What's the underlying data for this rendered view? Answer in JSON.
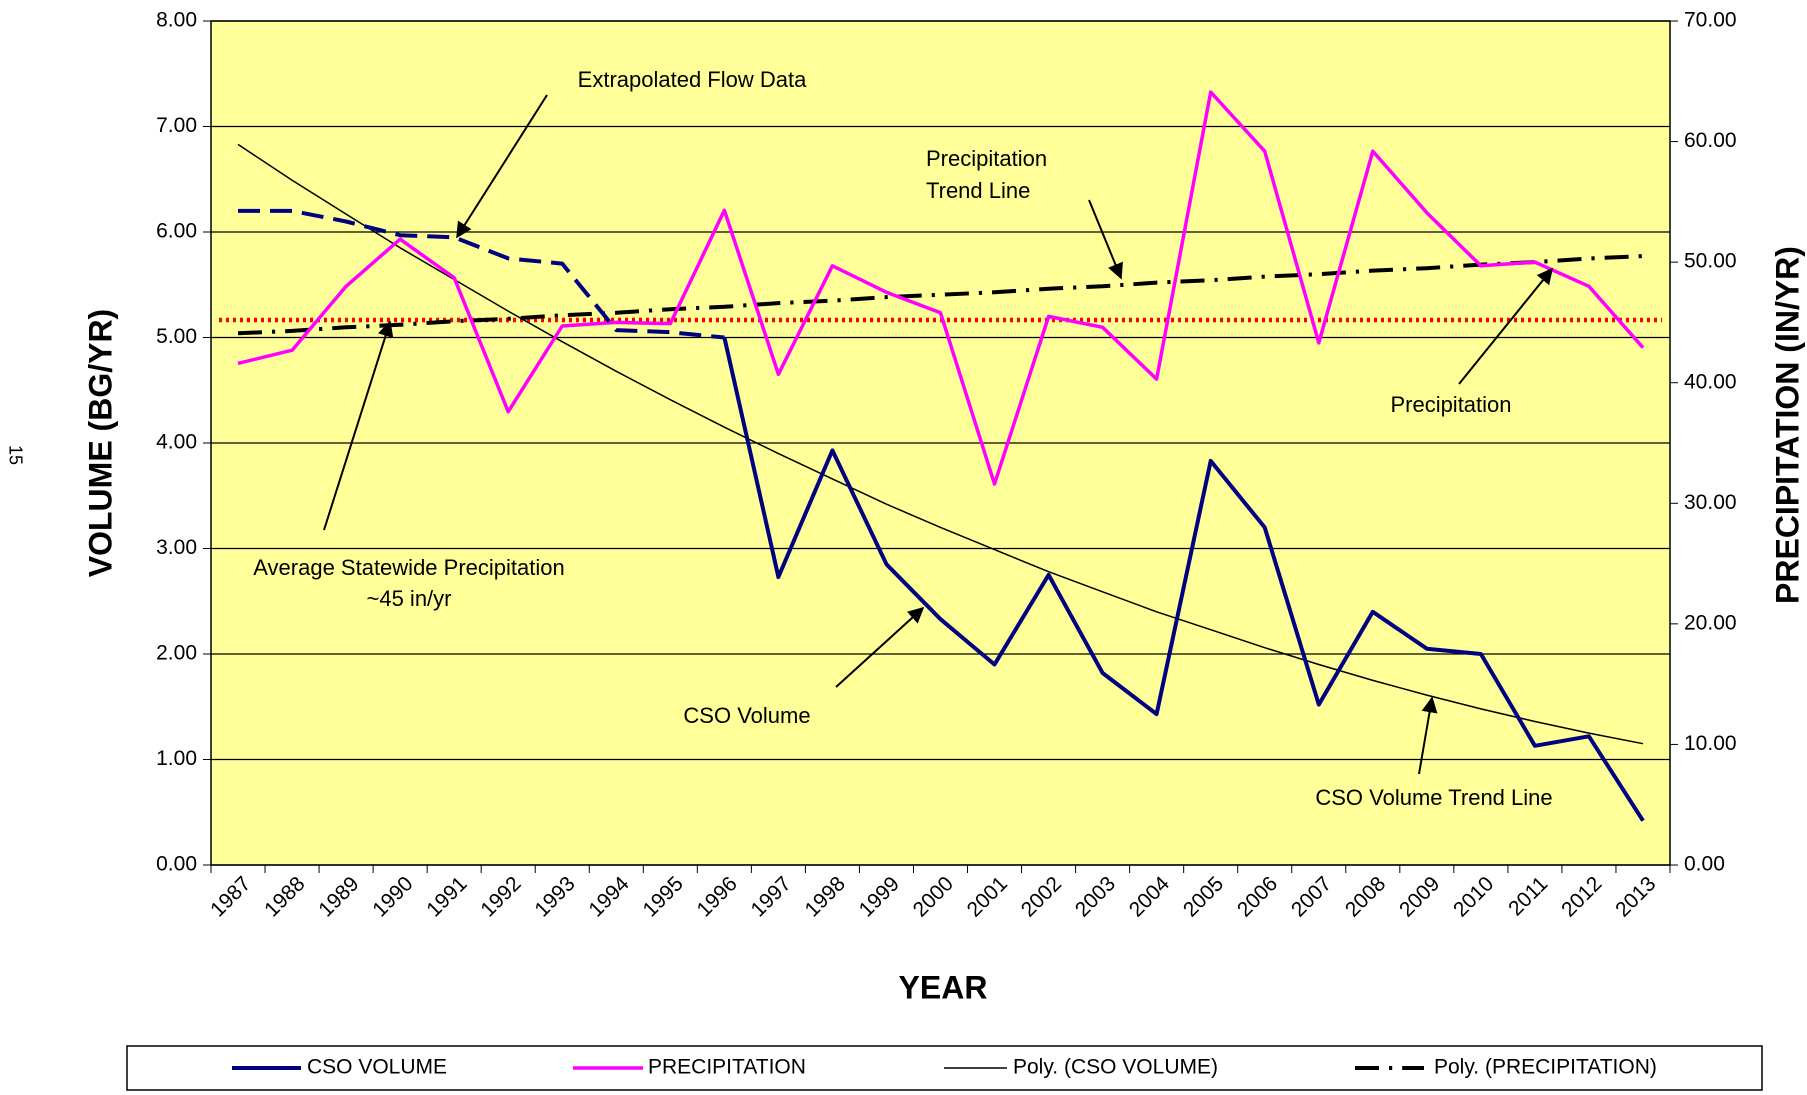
{
  "page_number": "15",
  "chart_data": {
    "type": "line",
    "x_label": "YEAR",
    "y_label": "VOLUME (BG/YR)",
    "y2_label": "PRECIPITATION (IN/YR)",
    "categories": [
      "1987",
      "1988",
      "1989",
      "1990",
      "1991",
      "1992",
      "1993",
      "1994",
      "1995",
      "1996",
      "1997",
      "1998",
      "1999",
      "2000",
      "2001",
      "2002",
      "2003",
      "2004",
      "2005",
      "2006",
      "2007",
      "2008",
      "2009",
      "2010",
      "2011",
      "2012",
      "2013"
    ],
    "ylim": [
      0,
      8
    ],
    "yticks": [
      {
        "value": 0,
        "label": "0.00"
      },
      {
        "value": 1,
        "label": "1.00"
      },
      {
        "value": 2,
        "label": "2.00"
      },
      {
        "value": 3,
        "label": "3.00"
      },
      {
        "value": 4,
        "label": "4.00"
      },
      {
        "value": 5,
        "label": "5.00"
      },
      {
        "value": 6,
        "label": "6.00"
      },
      {
        "value": 7,
        "label": "7.00"
      },
      {
        "value": 8,
        "label": "8.00"
      }
    ],
    "y2lim": [
      0,
      70
    ],
    "y2ticks": [
      {
        "value": 0,
        "label": "0.00"
      },
      {
        "value": 10,
        "label": "10.00"
      },
      {
        "value": 20,
        "label": "20.00"
      },
      {
        "value": 30,
        "label": "30.00"
      },
      {
        "value": 40,
        "label": "40.00"
      },
      {
        "value": 50,
        "label": "50.00"
      },
      {
        "value": 60,
        "label": "60.00"
      },
      {
        "value": 70,
        "label": "70.00"
      }
    ],
    "grid": true,
    "plot_background": "#ffff99",
    "series": [
      {
        "name": "CSO VOLUME",
        "color": "#000080",
        "width": 4,
        "dashed_to_index": 9,
        "values": [
          6.2,
          6.2,
          6.1,
          5.97,
          5.95,
          5.75,
          5.7,
          5.07,
          5.05,
          5.0,
          2.73,
          3.93,
          2.85,
          2.33,
          1.9,
          2.75,
          1.82,
          1.43,
          3.83,
          3.2,
          1.52,
          2.4,
          2.05,
          2.0,
          1.13,
          1.22,
          0.42
        ]
      },
      {
        "name": "PRECIPITATION",
        "color": "#ff00ff",
        "width": 3.5,
        "axis": "y2",
        "values": [
          41.6,
          42.7,
          48.0,
          51.9,
          48.7,
          37.6,
          44.7,
          45.0,
          44.9,
          54.3,
          40.7,
          49.7,
          47.5,
          45.8,
          31.6,
          45.5,
          44.6,
          40.3,
          64.1,
          59.2,
          43.3,
          59.2,
          54.1,
          49.7,
          50.0,
          48.0,
          42.9
        ]
      },
      {
        "name": "Poly. (CSO VOLUME)",
        "color": "#000000",
        "width": 1.5,
        "values": [
          6.83,
          6.49,
          6.17,
          5.85,
          5.55,
          5.25,
          4.96,
          4.68,
          4.41,
          4.15,
          3.9,
          3.66,
          3.42,
          3.2,
          2.99,
          2.78,
          2.59,
          2.4,
          2.23,
          2.06,
          1.9,
          1.75,
          1.61,
          1.48,
          1.36,
          1.25,
          1.15
        ]
      },
      {
        "name": "Poly. (PRECIPITATION)",
        "color": "#000000",
        "width": 4,
        "dash": "dashdot",
        "axis": "y2",
        "values": [
          44.1,
          44.3,
          44.6,
          44.8,
          45.1,
          45.3,
          45.6,
          45.8,
          46.1,
          46.3,
          46.6,
          46.8,
          47.1,
          47.3,
          47.5,
          47.8,
          48.0,
          48.3,
          48.5,
          48.8,
          49.0,
          49.3,
          49.5,
          49.8,
          50.0,
          50.3,
          50.5
        ]
      }
    ],
    "average_line": {
      "value": 45.2,
      "color": "#ff0000",
      "axis": "y2"
    },
    "annotations": [
      {
        "lines": [
          "Extrapolated Flow Data"
        ]
      },
      {
        "lines": [
          "Precipitation",
          "Trend Line"
        ]
      },
      {
        "lines": [
          "Precipitation"
        ]
      },
      {
        "lines": [
          "Average Statewide Precipitation",
          "~45 in/yr"
        ]
      },
      {
        "lines": [
          "CSO Volume"
        ]
      },
      {
        "lines": [
          "CSO Volume Trend Line"
        ]
      }
    ]
  }
}
